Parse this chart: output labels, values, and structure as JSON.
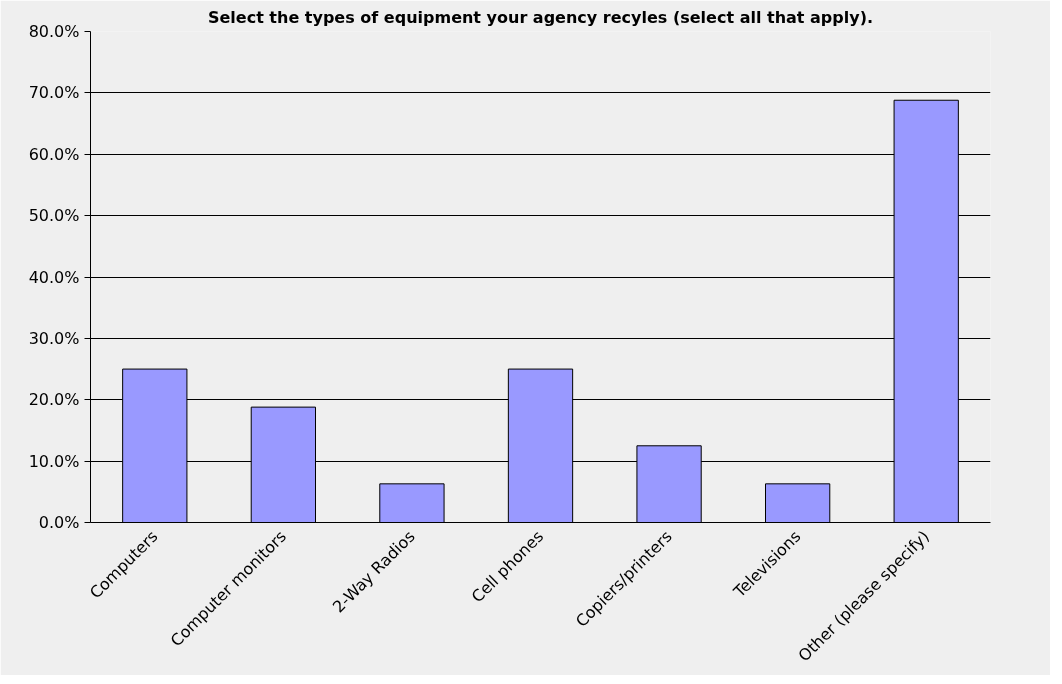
{
  "chart_data": {
    "type": "bar",
    "title": "Select the types of equipment your agency recyles (select all that apply).",
    "categories": [
      "Computers",
      "Computer monitors",
      "2-Way Radios",
      "Cell phones",
      "Copiers/printers",
      "Televisions",
      "Other (please specify)"
    ],
    "values": [
      25,
      18.8,
      6.3,
      25,
      12.5,
      6.3,
      68.8
    ],
    "color": "#9999ff",
    "ylim": [
      0,
      80
    ],
    "yticks": [
      {
        "value": 0,
        "label": "0.0%"
      },
      {
        "value": 10,
        "label": "10.0%"
      },
      {
        "value": 20,
        "label": "20.0%"
      },
      {
        "value": 30,
        "label": "30.0%"
      },
      {
        "value": 40,
        "label": "40.0%"
      },
      {
        "value": 50,
        "label": "50.0%"
      },
      {
        "value": 60,
        "label": "60.0%"
      },
      {
        "value": 70,
        "label": "70.0%"
      },
      {
        "value": 80,
        "label": "80.0%"
      }
    ],
    "grid": "y"
  }
}
